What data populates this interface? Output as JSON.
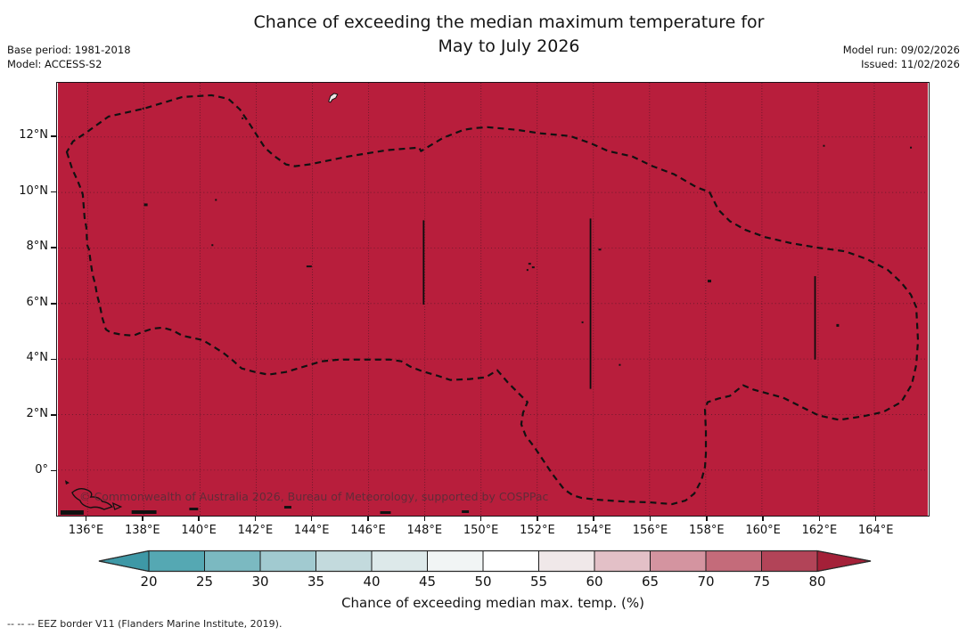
{
  "title": {
    "line1": "Chance of exceeding the median maximum temperature for",
    "line2": "May to July 2026"
  },
  "meta": {
    "base_period": "Base period: 1981-2018",
    "model": "Model: ACCESS-S2",
    "model_run": "Model run: 09/02/2026",
    "issued": "Issued: 11/02/2026"
  },
  "map": {
    "watermark": "© Commonwealth of Australia 2026, Bureau of Meteorology, supported by COSPPac",
    "fill_color": "#b81e3c",
    "gridline_color": "#63182a",
    "eez_border_color": "#111111",
    "island_color": "#111111"
  },
  "axes": {
    "x_tick_labels": [
      "136°E",
      "138°E",
      "140°E",
      "142°E",
      "144°E",
      "146°E",
      "148°E",
      "150°E",
      "152°E",
      "154°E",
      "156°E",
      "158°E",
      "160°E",
      "162°E",
      "164°E"
    ],
    "y_tick_labels": [
      "12°N",
      "10°N",
      "8°N",
      "6°N",
      "4°N",
      "2°N",
      "0°"
    ]
  },
  "colorbar": {
    "label": "Chance of exceeding median max. temp. (%)",
    "tick_labels": [
      "20",
      "25",
      "30",
      "35",
      "40",
      "45",
      "50",
      "55",
      "60",
      "65",
      "70",
      "75",
      "80"
    ],
    "segment_colors": [
      "#55a8b3",
      "#7bb9c1",
      "#a1cad0",
      "#c3dadd",
      "#dde9ea",
      "#f1f5f5",
      "#ffffff",
      "#f0e8e9",
      "#e3c0c7",
      "#d494a0",
      "#c46b7a",
      "#b24458"
    ],
    "under_color": "#3e98a6",
    "over_color": "#a42038",
    "outline_color": "#2a2a2a"
  },
  "footnote": "--  --  -- EEZ border V11 (Flanders Marine Institute, 2019).",
  "chart_data": {
    "type": "heatmap",
    "title": "Chance of exceeding the median maximum temperature for May to July 2026",
    "subtitle_left": [
      "Base period: 1981-2018",
      "Model: ACCESS-S2"
    ],
    "subtitle_right": [
      "Model run: 09/02/2026",
      "Issued: 11/02/2026"
    ],
    "x_axis": {
      "tick_labels": [
        "136°E",
        "138°E",
        "140°E",
        "142°E",
        "144°E",
        "146°E",
        "148°E",
        "150°E",
        "152°E",
        "154°E",
        "156°E",
        "158°E",
        "160°E",
        "162°E",
        "164°E"
      ],
      "range_deg_east": [
        135.0,
        166.2
      ],
      "grid": "dotted every 2°"
    },
    "y_axis": {
      "tick_labels": [
        "0°",
        "2°N",
        "4°N",
        "6°N",
        "8°N",
        "10°N",
        "12°N"
      ],
      "range_deg_north": [
        -1.6,
        13.9
      ],
      "grid": "dotted every 2°"
    },
    "values": "Uniform field: every grid cell in the mapped region falls in the > 80% chance bin (solid crimson)",
    "colorbar": {
      "orientation": "horizontal",
      "label": "Chance of exceeding median max. temp. (%)",
      "bin_edges": [
        20,
        25,
        30,
        35,
        40,
        45,
        50,
        55,
        60,
        65,
        70,
        75,
        80
      ],
      "extend": "both arrows (< 20 teal, > 80 crimson)"
    },
    "overlays": [
      "black dashed EEZ border polygon (EEZ border V11, Flanders Marine Institute 2019)",
      "three solid black meridian border segments near 148°E (6-9°N), 154°E (3-9°N), 162°E (4-7°N)",
      "small black island specks (Yap, Chuuk, Pohnpei, Kosrae, Guam outline)",
      "land outlines in the bottom-left corner"
    ]
  }
}
